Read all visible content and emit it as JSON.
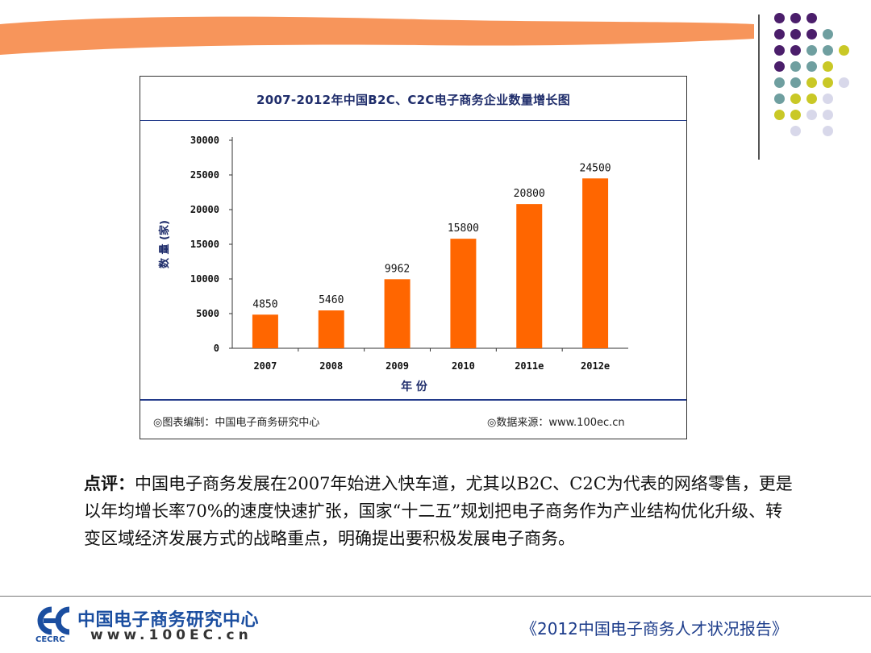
{
  "colors": {
    "brush": "#F7955B",
    "bar": "#FF6600",
    "dot_purple": "#4B1E6B",
    "dot_teal": "#6F9FA0",
    "dot_lime": "#C9C826",
    "dot_lavender": "#D8D8EA",
    "brand_blue": "#1B4EA0"
  },
  "chart_data": {
    "type": "bar",
    "title": "2007-2012年中国B2C、C2C电子商务企业数量增长图",
    "categories": [
      "2007",
      "2008",
      "2009",
      "2010",
      "2011e",
      "2012e"
    ],
    "values": [
      4850,
      5460,
      9962,
      15800,
      20800,
      24500
    ],
    "data_labels": [
      "4850",
      "5460",
      "9962",
      "15800",
      "20800",
      "24500"
    ],
    "xlabel": "年 份",
    "ylabel": "数 量 (家)",
    "ylim": [
      0,
      30000
    ],
    "yticks": [
      0,
      5000,
      10000,
      15000,
      20000,
      25000,
      30000
    ],
    "ytick_labels": [
      "0",
      "5000",
      "10000",
      "15000",
      "20000",
      "25000",
      "30000"
    ],
    "grid": false,
    "legend": "none",
    "footer_left": "◎图表编制：中国电子商务研究中心",
    "footer_right": "◎数据来源：www.100ec.cn"
  },
  "comment": {
    "label": "点评：",
    "text": "中国电子商务发展在2007年始进入快车道，尤其以B2C、C2C为代表的网络零售，更是以年均增长率70%的速度快速扩张，国家“十二五”规划把电子商务作为产业结构优化升级、转变区域经济发展方式的战略重点，明确提出要积极发展电子商务。"
  },
  "footer": {
    "org_name": "中国电子商务研究中心",
    "org_abbr": "CECRC",
    "url": "www.100EC.cn",
    "report_title": "《2012中国电子商务人才状况报告》"
  }
}
